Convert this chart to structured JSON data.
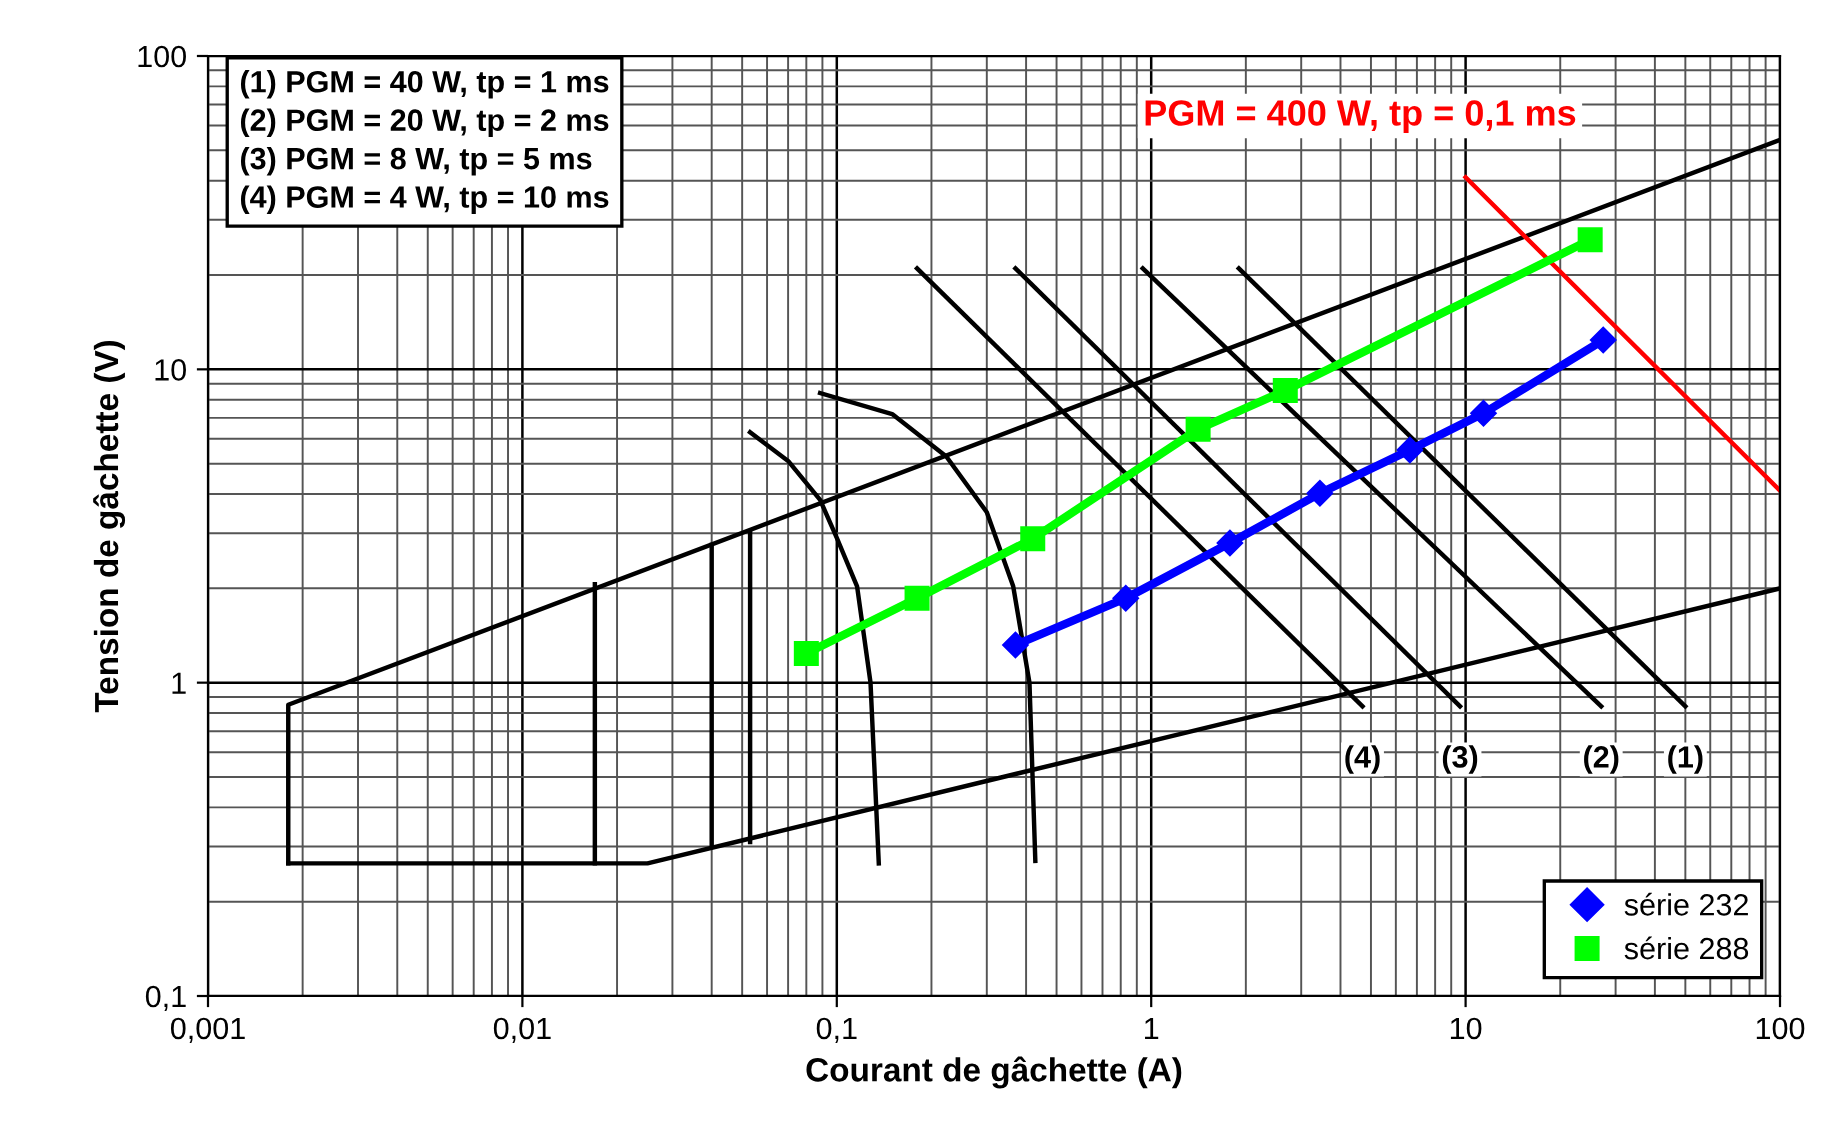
{
  "chart_data": {
    "type": "line",
    "xlabel": "Courant de gâchette (A)",
    "ylabel": "Tension de gâchette (V)",
    "log": "xy",
    "grid": true,
    "legend": "bottom right",
    "marker": "none",
    "line_style": "solid",
    "xlim": [
      0.001,
      100
    ],
    "xticks": [
      {
        "value": 0.001,
        "label": "0,001"
      },
      {
        "value": 0.01,
        "label": "0,01"
      },
      {
        "value": 0.1,
        "label": "0,1"
      },
      {
        "value": 1,
        "label": "1"
      },
      {
        "value": 10,
        "label": "10"
      },
      {
        "value": 100,
        "label": "100"
      }
    ],
    "ylim": [
      0.1,
      100
    ],
    "yticks": [
      {
        "value": 0.1,
        "label": "0,1"
      },
      {
        "value": 1,
        "label": "1"
      },
      {
        "value": 10,
        "label": "10"
      },
      {
        "value": 100,
        "label": "100"
      }
    ],
    "series": [
      {
        "color": "#000000",
        "x": [
          0.0018,
          0.0018,
          100
        ],
        "values": [
          0.265,
          0.85,
          54
        ]
      },
      {
        "color": "#000000",
        "x": [
          0.0018,
          0.025,
          100
        ],
        "values": [
          0.265,
          0.265,
          2.0
        ]
      },
      {
        "color": "#000000",
        "x": [
          0.017,
          0.017
        ],
        "values": [
          0.265,
          2.06
        ]
      },
      {
        "color": "#000000",
        "x": [
          0.04,
          0.04
        ],
        "values": [
          0.3,
          2.75
        ]
      },
      {
        "color": "#000000",
        "x": [
          0.053,
          0.053
        ],
        "values": [
          0.31,
          3.0
        ]
      },
      {
        "color": "#000000",
        "x": [
          0.053,
          0.07,
          0.0885,
          0.1,
          0.116,
          0.128,
          0.136
        ],
        "values": [
          6.3,
          5.1,
          3.83,
          2.9,
          2.03,
          1.0,
          0.265
        ]
      },
      {
        "color": "#000000",
        "x": [
          0.0885,
          0.15,
          0.223,
          0.3,
          0.364,
          0.41,
          0.428
        ],
        "values": [
          8.4,
          7.2,
          5.27,
          3.5,
          2.03,
          1.0,
          0.27
        ]
      },
      {
        "color": "#000000",
        "x": [
          0.18,
          4.7
        ],
        "values": [
          21,
          0.84
        ]
      },
      {
        "color": "#000000",
        "x": [
          0.37,
          9.6
        ],
        "values": [
          21,
          0.84
        ]
      },
      {
        "color": "#000000",
        "x": [
          0.94,
          27
        ],
        "values": [
          21,
          0.84
        ]
      },
      {
        "color": "#000000",
        "x": [
          1.9,
          50
        ],
        "values": [
          21,
          0.84
        ]
      },
      {
        "color": "#ff0000",
        "x": [
          10,
          100
        ],
        "values": [
          41,
          4.1
        ]
      },
      {
        "name": "série 232",
        "color": "#0000ff",
        "marker": "diamond",
        "x": [
          0.37,
          0.83,
          1.78,
          3.44,
          6.65,
          11.4,
          27.4
        ],
        "values": [
          1.32,
          1.86,
          2.79,
          4.02,
          5.53,
          7.24,
          12.4
        ]
      },
      {
        "name": "série 288",
        "color": "#00ff00",
        "marker": "square",
        "x": [
          0.08,
          0.18,
          0.42,
          1.41,
          2.67,
          24.9
        ],
        "values": [
          1.24,
          1.86,
          2.88,
          6.44,
          8.56,
          25.9
        ]
      }
    ],
    "annotations": [
      "(1) PGM = 40 W, tp = 1 ms",
      "(2) PGM = 20 W, tp = 2 ms",
      "(3) PGM = 8 W, tp = 5 ms",
      "(4) PGM = 4 W, tp = 10 ms",
      "PGM = 400 W, tp = 0,1 ms",
      "(4)",
      "(3)",
      "(2)",
      "(1)"
    ]
  }
}
